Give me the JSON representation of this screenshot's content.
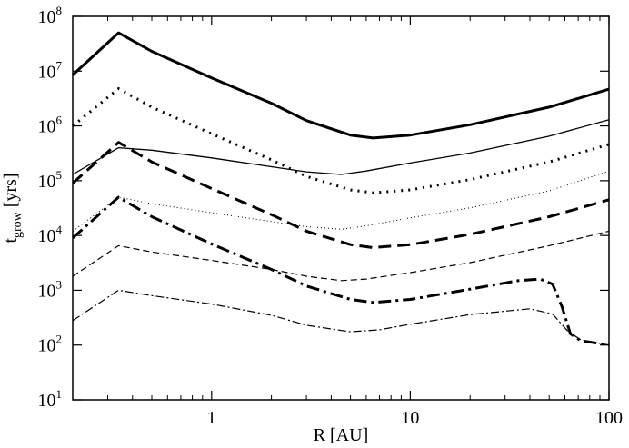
{
  "chart_data": {
    "type": "line",
    "title": "",
    "xlabel": "R [AU]",
    "ylabel": {
      "main": "t",
      "sub": "grow",
      "unit": " [yrs]"
    },
    "xscale": "log",
    "yscale": "log",
    "xlim": [
      0.2,
      100
    ],
    "ylim": [
      10,
      100000000
    ],
    "grid": false,
    "legend": "none",
    "x_ticks": [
      {
        "value": 1,
        "label": "1"
      },
      {
        "value": 10,
        "label": "10"
      },
      {
        "value": 100,
        "label": "100"
      }
    ],
    "y_ticks": [
      {
        "value": 10,
        "base": "10",
        "exp": "1"
      },
      {
        "value": 100,
        "base": "10",
        "exp": "2"
      },
      {
        "value": 1000,
        "base": "10",
        "exp": "3"
      },
      {
        "value": 10000,
        "base": "10",
        "exp": "4"
      },
      {
        "value": 100000,
        "base": "10",
        "exp": "5"
      },
      {
        "value": 1000000,
        "base": "10",
        "exp": "6"
      },
      {
        "value": 10000000,
        "base": "10",
        "exp": "7"
      },
      {
        "value": 100000000,
        "base": "10",
        "exp": "8"
      }
    ],
    "series": [
      {
        "style": "thick-solid",
        "points": [
          [
            0.2,
            8500000.0
          ],
          [
            0.34,
            50000000.0
          ],
          [
            0.5,
            23000000.0
          ],
          [
            1,
            7500000.0
          ],
          [
            2,
            2600000.0
          ],
          [
            3,
            1250000.0
          ],
          [
            5,
            680000.0
          ],
          [
            6.5,
            600000.0
          ],
          [
            10,
            680000.0
          ],
          [
            20,
            1050000.0
          ],
          [
            50,
            2200000.0
          ],
          [
            100,
            4700000.0
          ]
        ]
      },
      {
        "style": "thick-dotted",
        "points": [
          [
            0.2,
            1000000.0
          ],
          [
            0.34,
            4800000.0
          ],
          [
            0.5,
            2200000.0
          ],
          [
            1,
            720000.0
          ],
          [
            2,
            240000.0
          ],
          [
            3,
            120000.0
          ],
          [
            5,
            68000.0
          ],
          [
            6.5,
            60000.0
          ],
          [
            10,
            68000.0
          ],
          [
            20,
            105000.0
          ],
          [
            50,
            220000.0
          ],
          [
            100,
            460000.0
          ]
        ]
      },
      {
        "style": "thin-solid",
        "points": [
          [
            0.2,
            130000.0
          ],
          [
            0.34,
            400000.0
          ],
          [
            0.5,
            360000.0
          ],
          [
            1,
            260000.0
          ],
          [
            2,
            180000.0
          ],
          [
            3,
            145000.0
          ],
          [
            4.5,
            130000.0
          ],
          [
            6,
            150000.0
          ],
          [
            10,
            210000.0
          ],
          [
            20,
            320000.0
          ],
          [
            50,
            650000.0
          ],
          [
            100,
            1300000.0
          ]
        ]
      },
      {
        "style": "thick-dashed",
        "points": [
          [
            0.2,
            90000.0
          ],
          [
            0.34,
            500000.0
          ],
          [
            0.5,
            220000.0
          ],
          [
            1,
            72000.0
          ],
          [
            2,
            24000.0
          ],
          [
            3,
            12000.0
          ],
          [
            5,
            6800.0
          ],
          [
            6.5,
            6000.0
          ],
          [
            10,
            6800.0
          ],
          [
            20,
            10500.0
          ],
          [
            50,
            22000.0
          ],
          [
            100,
            45000.0
          ]
        ]
      },
      {
        "style": "thin-dotted",
        "points": [
          [
            0.2,
            12000.0
          ],
          [
            0.34,
            50000.0
          ],
          [
            0.5,
            38000.0
          ],
          [
            1,
            26000.0
          ],
          [
            2,
            18000.0
          ],
          [
            3,
            14500.0
          ],
          [
            4.5,
            13000.0
          ],
          [
            6,
            15000.0
          ],
          [
            10,
            21000.0
          ],
          [
            20,
            32000.0
          ],
          [
            50,
            65000.0
          ],
          [
            100,
            150000.0
          ]
        ]
      },
      {
        "style": "thick-dashdot",
        "points": [
          [
            0.2,
            9000.0
          ],
          [
            0.34,
            50000.0
          ],
          [
            0.5,
            22000.0
          ],
          [
            1,
            7000.0
          ],
          [
            2,
            2400.0
          ],
          [
            3,
            1200.0
          ],
          [
            5,
            680.0
          ],
          [
            6.5,
            600.0
          ],
          [
            10,
            680.0
          ],
          [
            20,
            1050.0
          ],
          [
            35,
            1500.0
          ],
          [
            45,
            1600.0
          ],
          [
            52,
            1300.0
          ],
          [
            58,
            500.0
          ],
          [
            64,
            160.0
          ],
          [
            72,
            120.0
          ],
          [
            100,
            100.0
          ]
        ]
      },
      {
        "style": "thin-dashed",
        "points": [
          [
            0.2,
            1800.0
          ],
          [
            0.34,
            6500.0
          ],
          [
            0.5,
            5000.0
          ],
          [
            1,
            3500.0
          ],
          [
            2,
            2400.0
          ],
          [
            3,
            1800.0
          ],
          [
            4.5,
            1500.0
          ],
          [
            6,
            1600.0
          ],
          [
            10,
            2100.0
          ],
          [
            20,
            3200.0
          ],
          [
            50,
            6500.0
          ],
          [
            100,
            12000.0
          ]
        ]
      },
      {
        "style": "thin-dashdot",
        "points": [
          [
            0.2,
            280.0
          ],
          [
            0.34,
            1000.0
          ],
          [
            0.5,
            800.0
          ],
          [
            1,
            560.0
          ],
          [
            2,
            350.0
          ],
          [
            3,
            230.0
          ],
          [
            5,
            175.0
          ],
          [
            7,
            190.0
          ],
          [
            10,
            240.0
          ],
          [
            20,
            360.0
          ],
          [
            40,
            460.0
          ],
          [
            52,
            370.0
          ],
          [
            62,
            180.0
          ],
          [
            72,
            125.0
          ],
          [
            100,
            100.0
          ]
        ]
      }
    ]
  }
}
